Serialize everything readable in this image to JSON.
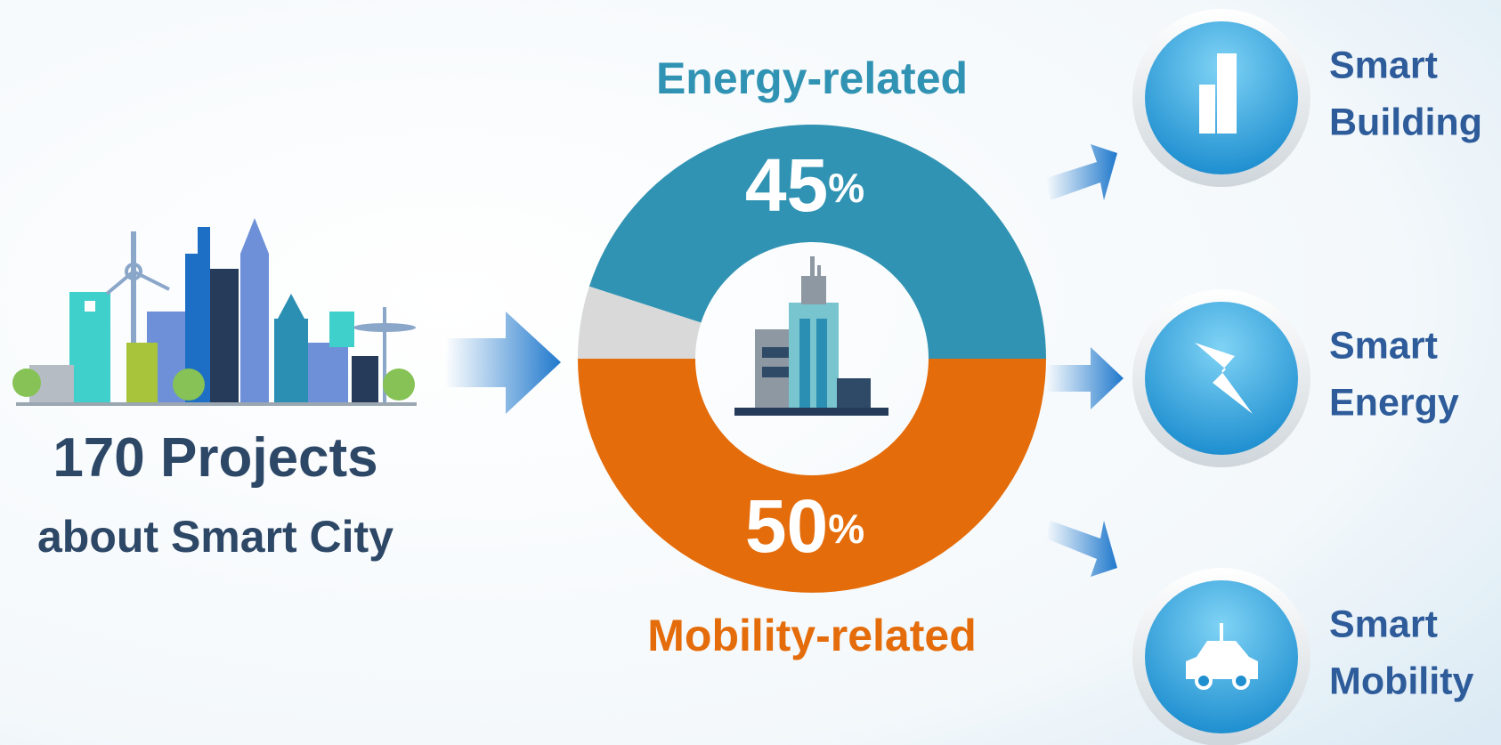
{
  "left": {
    "headline": "170 Projects",
    "subline": "about Smart City"
  },
  "chart_data": {
    "type": "donut",
    "categories": [
      "Energy-related",
      "Mobility-related",
      null
    ],
    "values": [
      45,
      50,
      5
    ],
    "value_labels": [
      "45%",
      "50%",
      null
    ],
    "colors": [
      "#3193b3",
      "#e46c0a",
      "#d9d9d9"
    ]
  },
  "outcomes": [
    {
      "lines": [
        "Smart",
        "Building"
      ]
    },
    {
      "lines": [
        "Smart",
        "Energy"
      ]
    },
    {
      "lines": [
        "Smart",
        "Mobility"
      ]
    }
  ]
}
